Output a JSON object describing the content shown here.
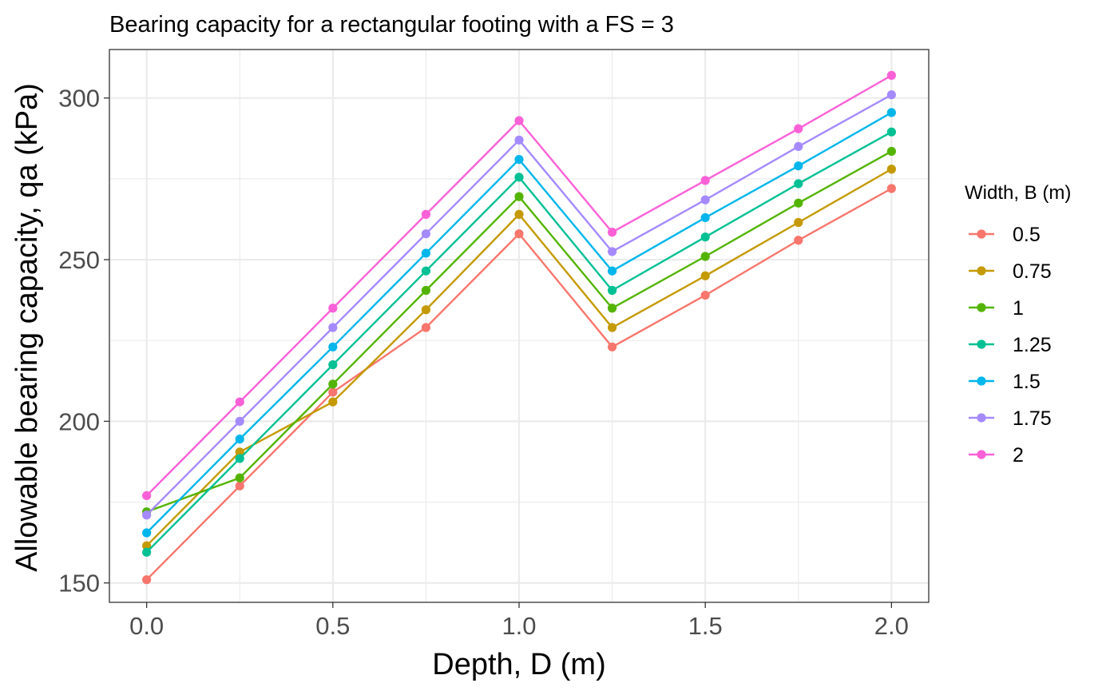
{
  "chart_data": {
    "type": "line",
    "title": "Bearing capacity for a rectangular footing with a FS = 3",
    "xlabel": "Depth, D (m)",
    "ylabel": "Allowable bearing capacity, qa (kPa)",
    "xlim": [
      -0.1,
      2.1
    ],
    "ylim": [
      144,
      315
    ],
    "x_ticks": [
      0.0,
      0.5,
      1.0,
      1.5,
      2.0
    ],
    "x_tick_labels": [
      "0.0",
      "0.5",
      "1.0",
      "1.5",
      "2.0"
    ],
    "y_ticks": [
      150,
      200,
      250,
      300
    ],
    "y_tick_labels": [
      "150",
      "200",
      "250",
      "300"
    ],
    "x": [
      0,
      0.25,
      0.5,
      0.75,
      1.0,
      1.25,
      1.5,
      1.75,
      2.0
    ],
    "grid": true,
    "legend_title": "Width, B (m)",
    "legend_position": "right",
    "series": [
      {
        "name": "0.5",
        "color": "#F8766D",
        "values": [
          151,
          180,
          209,
          229,
          258,
          223,
          239,
          256,
          272
        ]
      },
      {
        "name": "0.75",
        "color": "#C49A00",
        "values": [
          161.5,
          190.5,
          206,
          234.5,
          264,
          229,
          245,
          261.5,
          278
        ]
      },
      {
        "name": "1",
        "color": "#53B400",
        "values": [
          172,
          182.5,
          211.5,
          240.5,
          269.5,
          235,
          251,
          267.5,
          283.5
        ]
      },
      {
        "name": "1.25",
        "color": "#00C094",
        "values": [
          159.5,
          188.5,
          217.5,
          246.5,
          275.5,
          240.5,
          257,
          273.5,
          289.5
        ]
      },
      {
        "name": "1.5",
        "color": "#00B6EB",
        "values": [
          165.5,
          194.5,
          223,
          252,
          281,
          246.5,
          263,
          279,
          295.5
        ]
      },
      {
        "name": "1.75",
        "color": "#A58AFF",
        "values": [
          171,
          200,
          229,
          258,
          287,
          252.5,
          268.5,
          285,
          301
        ]
      },
      {
        "name": "2",
        "color": "#FB61D7",
        "values": [
          177,
          206,
          235,
          264,
          293,
          258.5,
          274.5,
          290.5,
          307
        ]
      }
    ]
  }
}
